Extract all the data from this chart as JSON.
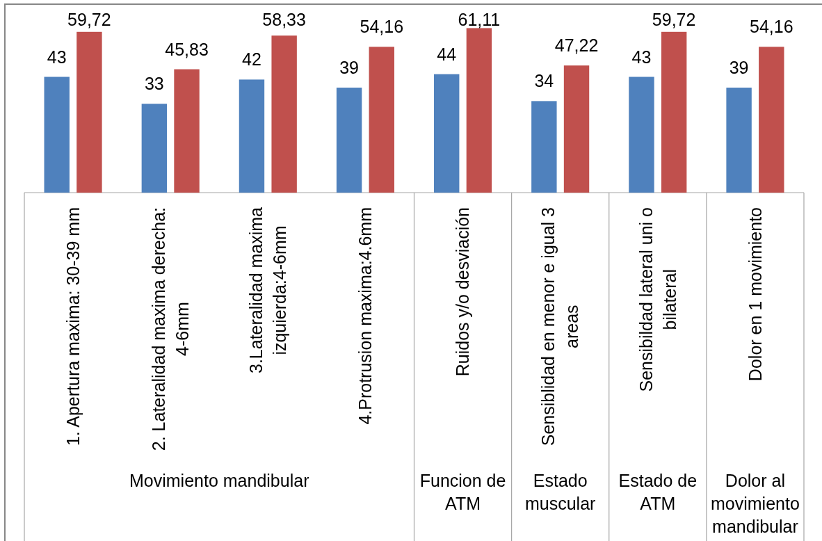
{
  "chart_data": {
    "type": "bar",
    "categories": [
      "1. Apertura maxima: 30-39 mm",
      "2. Lateralidad maxima derecha: 4-6mm",
      "3.Lateralidad maxima izquierda:4-6mm",
      "4.Protrusion maxima:4.6mm",
      "Ruidos y/o desviación",
      "Sensiblidad en menor e igual 3 areas",
      "Sensibildad lateral uni o bilateral",
      "Dolor en 1 movimiento"
    ],
    "series": [
      {
        "color": "#4f81bd",
        "values": [
          43,
          33,
          42,
          39,
          44,
          34,
          43,
          39
        ],
        "value_labels": [
          "43",
          "33",
          "42",
          "39",
          "44",
          "34",
          "43",
          "39"
        ]
      },
      {
        "color": "#c0504d",
        "values": [
          59.72,
          45.83,
          58.33,
          54.16,
          61.11,
          47.22,
          59.72,
          54.16
        ],
        "value_labels": [
          "59,72",
          "45,83",
          "58,33",
          "54,16",
          "61,11",
          "47,22",
          "59,72",
          "54,16"
        ]
      }
    ],
    "ylim": [
      0,
      70
    ],
    "tick_labels": "x",
    "annotations": [
      "Movimiento mandibular",
      "Funcion de ATM",
      "Estado muscular",
      "Estado de ATM",
      "Dolor al movimiento mandibular"
    ]
  }
}
